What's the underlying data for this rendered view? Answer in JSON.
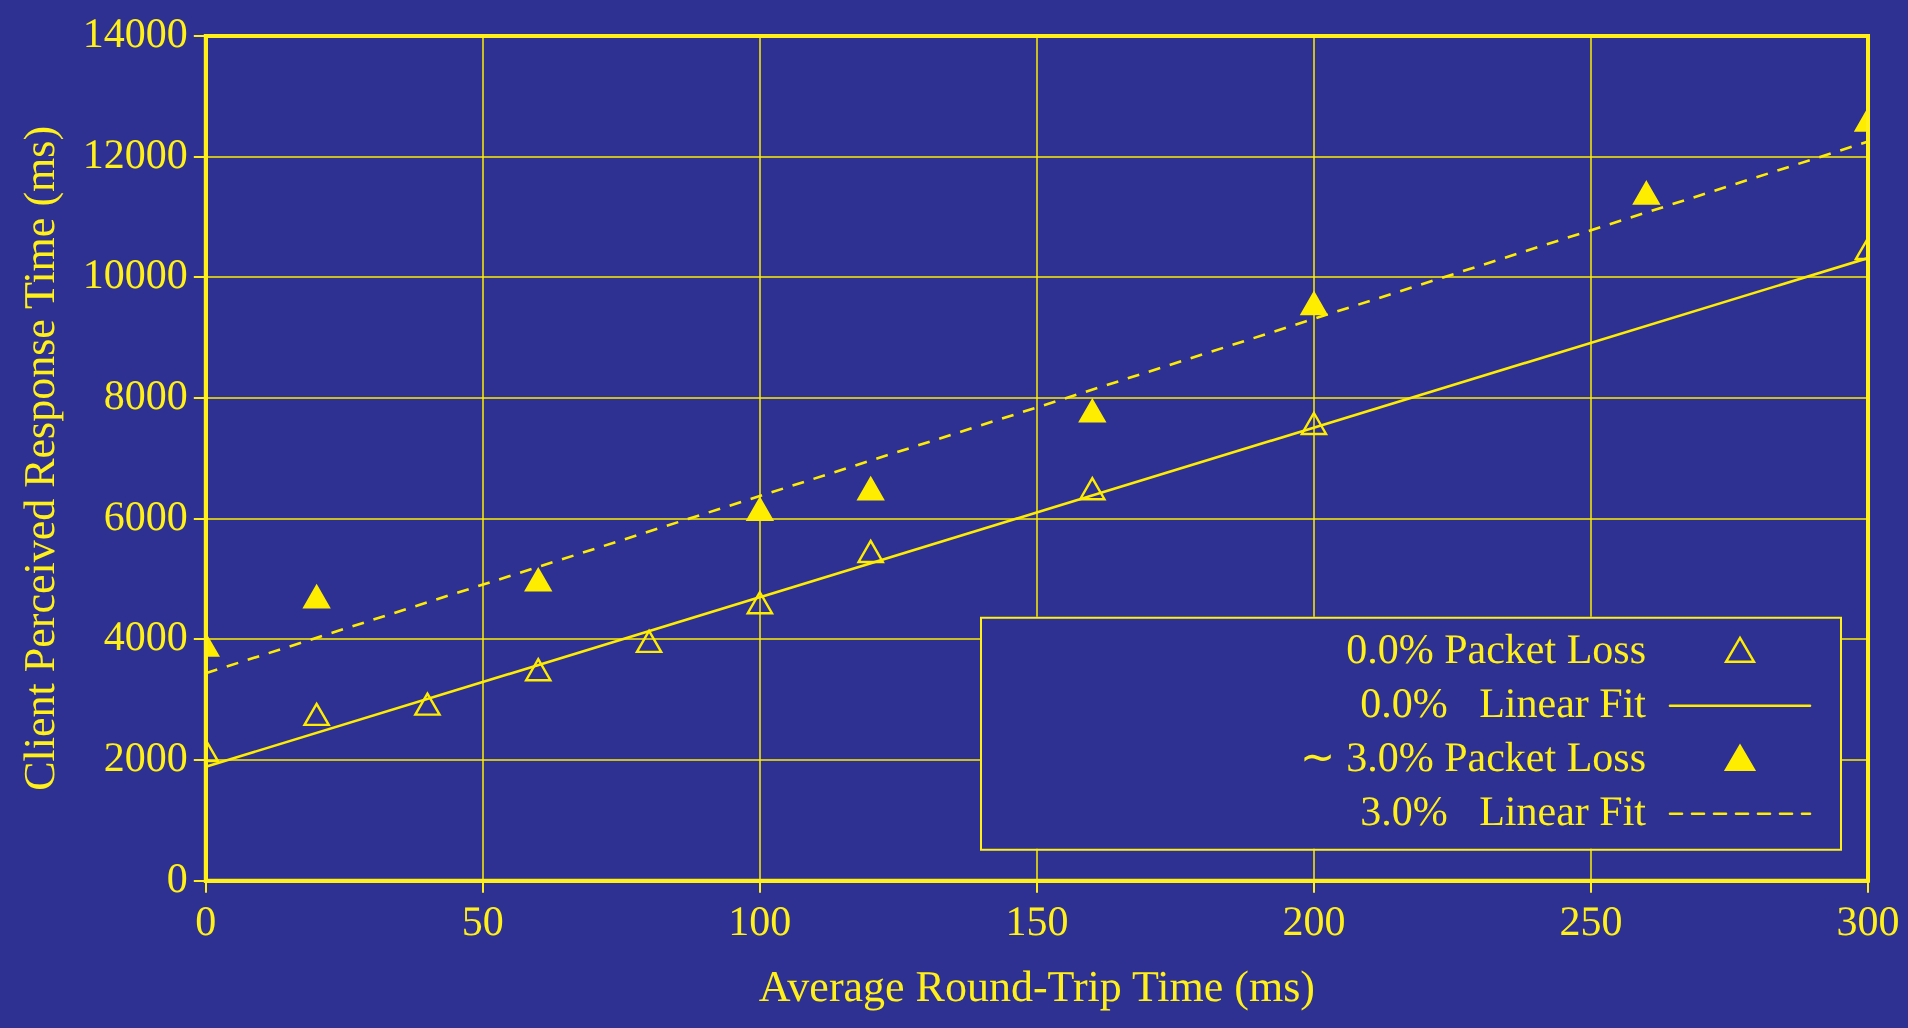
{
  "chart_data": {
    "type": "scatter",
    "xlabel": "Average Round-Trip Time (ms)",
    "ylabel": "Client Perceived Response Time (ms)",
    "xlim": [
      0,
      300
    ],
    "xticks": [
      0,
      50,
      100,
      150,
      200,
      250,
      300
    ],
    "ylim": [
      0,
      14000
    ],
    "yticks": [
      0,
      2000,
      4000,
      6000,
      8000,
      10000,
      12000,
      14000
    ],
    "grid": true,
    "legend": "bottom right",
    "series": [
      {
        "name": "0.0% Packet Loss",
        "color": "#ffed00",
        "marker": "triangle",
        "x": [
          0,
          20,
          40,
          60,
          80,
          100,
          120,
          160,
          200,
          300
        ],
        "values": [
          2100,
          2700,
          2870,
          3440,
          3910,
          4550,
          5400,
          6440,
          7520,
          10420
        ]
      },
      {
        "name": "0.0%   Linear Fit",
        "type": "line",
        "color": "#ffed00",
        "marker": "none",
        "line_style": "solid",
        "x": [
          0,
          300
        ],
        "values": [
          1890,
          10320
        ]
      },
      {
        "name": "∼ 3.0% Packet Loss",
        "color": "#ffed00",
        "marker": "triangle",
        "x": [
          0,
          20,
          60,
          100,
          120,
          160,
          200,
          260,
          300
        ],
        "values": [
          3850,
          4650,
          4930,
          6100,
          6440,
          7730,
          9510,
          11340,
          12550
        ]
      },
      {
        "name": "3.0%   Linear Fit",
        "type": "line",
        "color": "#ffed00",
        "marker": "none",
        "line_style": "dashed",
        "x": [
          0,
          300
        ],
        "values": [
          3440,
          12250
        ]
      }
    ]
  }
}
